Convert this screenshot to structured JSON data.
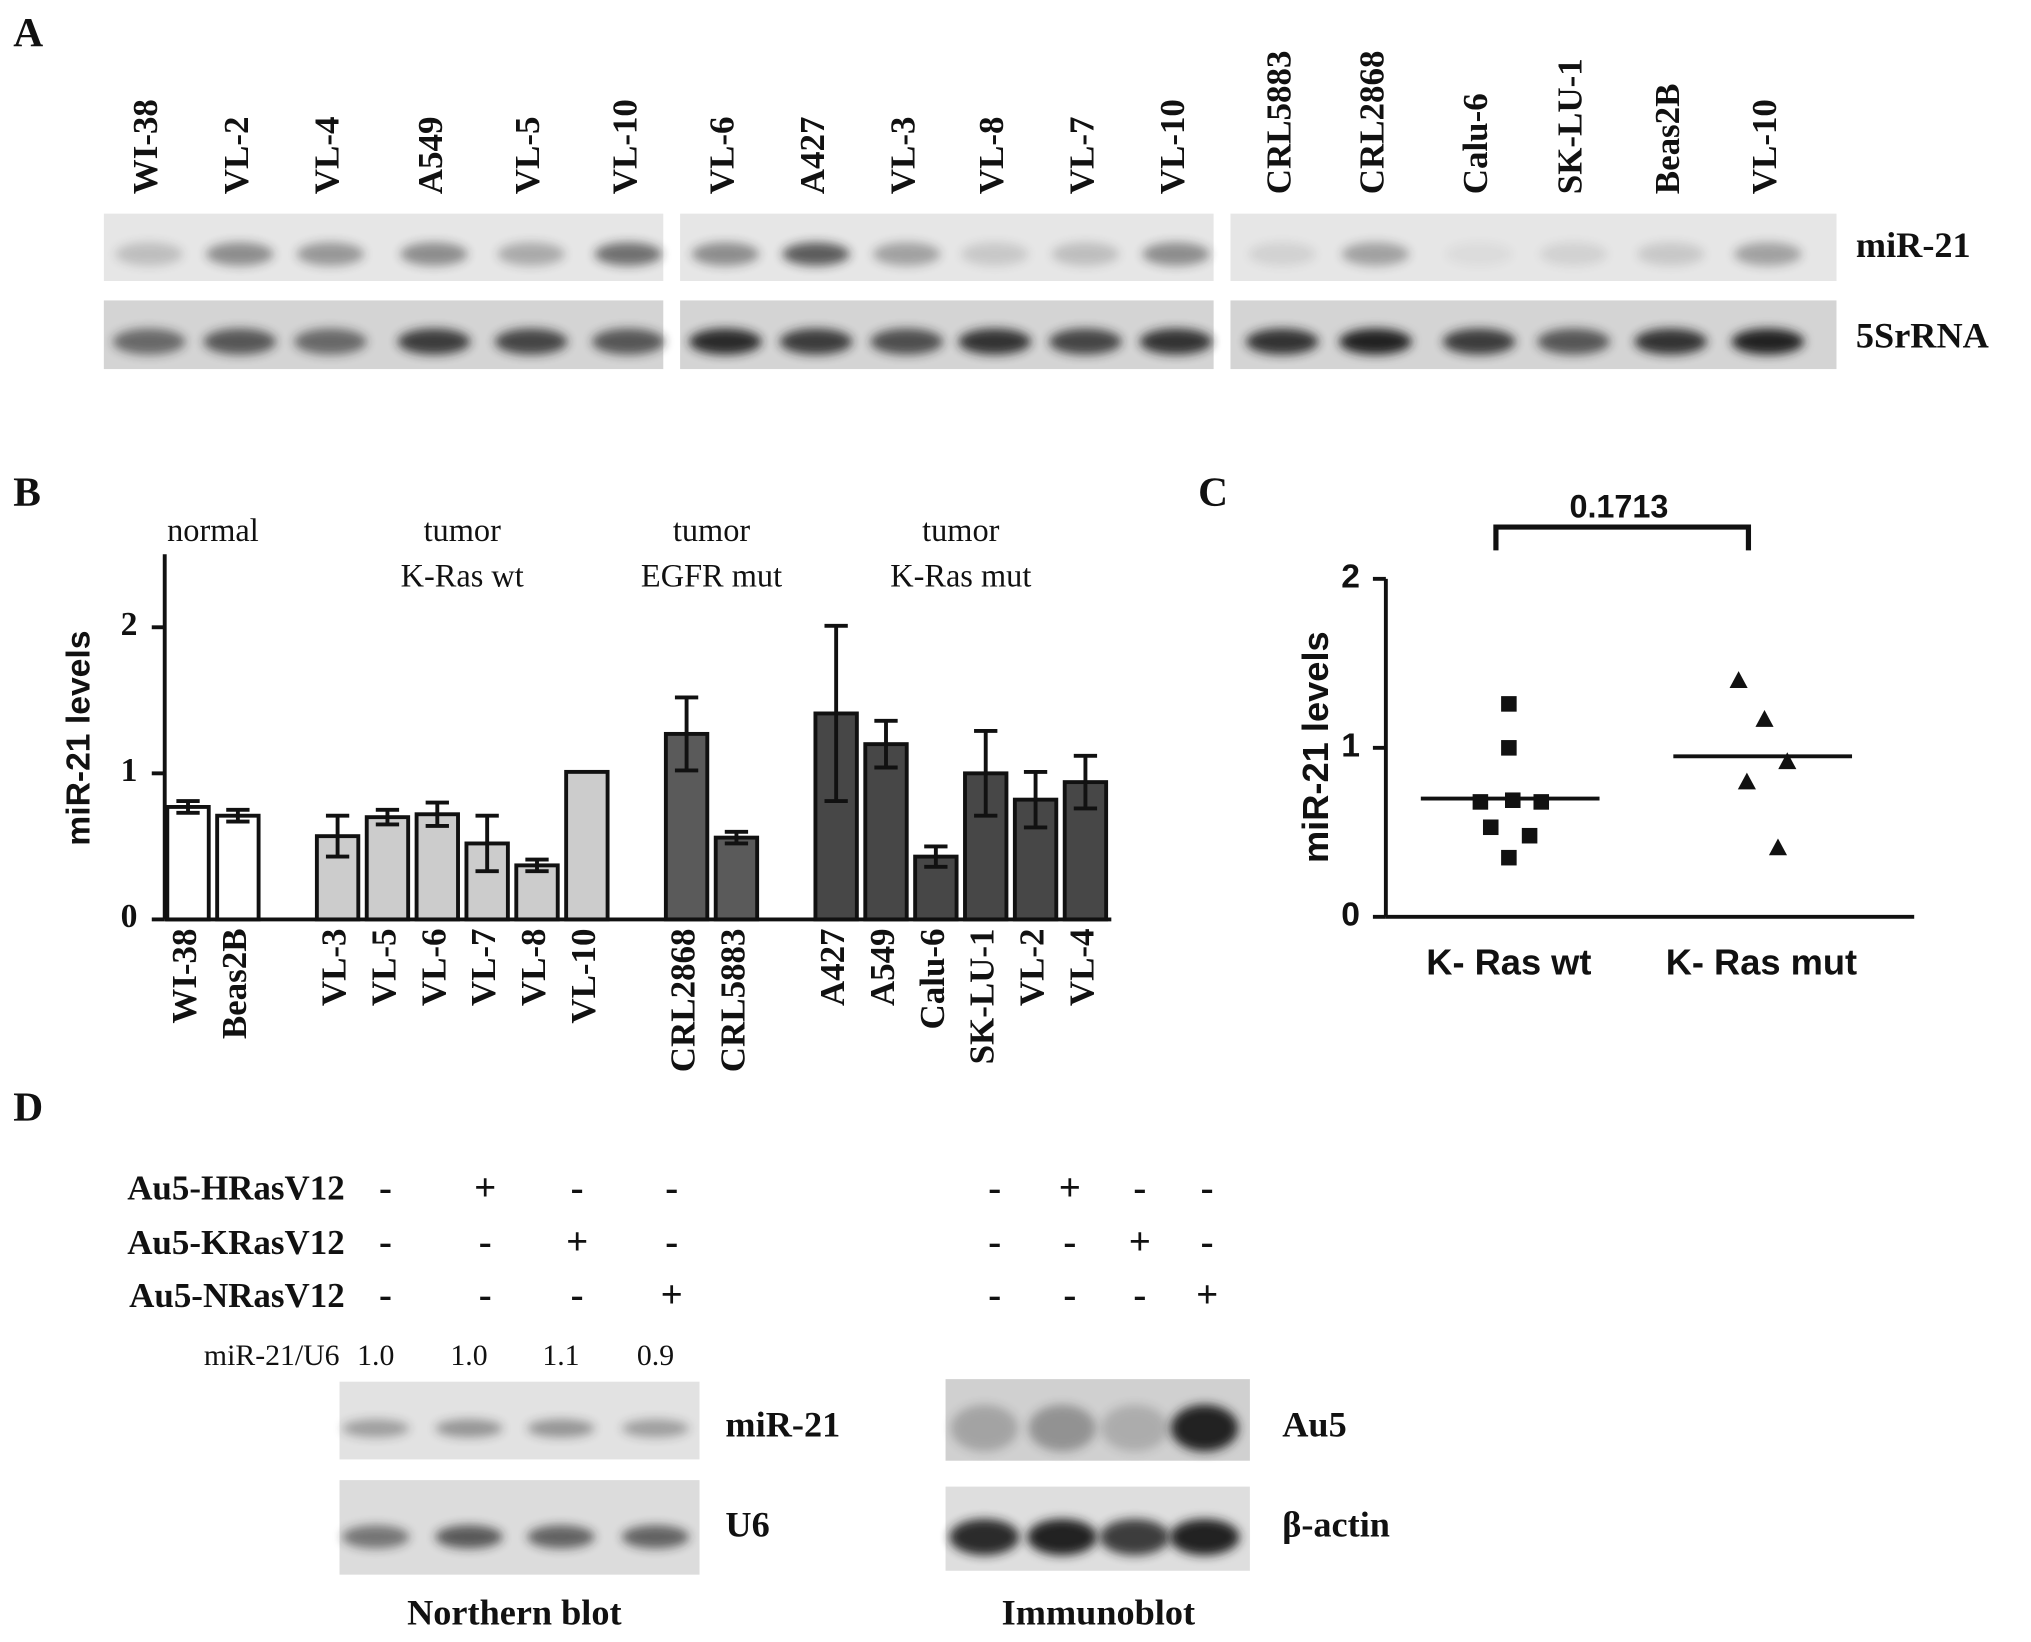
{
  "panel_a": {
    "label": "A",
    "blots": [
      [
        "WI-38",
        "VL-2",
        "VL-4",
        "A549",
        "VL-5",
        "VL-10"
      ],
      [
        "VL-6",
        "A427",
        "VL-3",
        "VL-8",
        "VL-7",
        "VL-10"
      ],
      [
        "CRL5883",
        "CRL2868",
        "Calu-6",
        "SK-LU-1",
        "Beas2B",
        "VL-10"
      ]
    ],
    "rows": [
      "miR-21",
      "5SrRNA"
    ]
  },
  "chart_data": [
    {
      "type": "bar",
      "label": "B",
      "ylabel": "miR-21 levels",
      "ylim": [
        0,
        2.5
      ],
      "yticks": [
        0,
        1,
        2
      ],
      "groups": [
        {
          "label": [
            "normal"
          ],
          "color": "#ffffff",
          "categories": [
            "WI-38",
            "Beas2B"
          ],
          "values": [
            0.77,
            0.71
          ],
          "errors": [
            0.04,
            0.04
          ]
        },
        {
          "label": [
            "tumor",
            "K-Ras wt"
          ],
          "color": "#cccccc",
          "categories": [
            "VL-3",
            "VL-5",
            "VL-6",
            "VL-7",
            "VL-8",
            "VL-10"
          ],
          "values": [
            0.57,
            0.7,
            0.72,
            0.52,
            0.37,
            1.01
          ],
          "errors": [
            0.14,
            0.05,
            0.08,
            0.19,
            0.04,
            0
          ]
        },
        {
          "label": [
            "tumor",
            "EGFR mut"
          ],
          "color": "#5a5a5a",
          "categories": [
            "CRL2868",
            "CRL5883"
          ],
          "values": [
            1.27,
            0.56
          ],
          "errors": [
            0.25,
            0.04
          ]
        },
        {
          "label": [
            "tumor",
            "K-Ras mut"
          ],
          "color": "#474747",
          "categories": [
            "A427",
            "A549",
            "Calu-6",
            "SK-LU-1",
            "VL-2",
            "VL-4"
          ],
          "values": [
            1.41,
            1.2,
            0.43,
            1.0,
            0.82,
            0.94
          ],
          "errors": [
            0.6,
            0.16,
            0.07,
            0.29,
            0.19,
            0.18
          ]
        }
      ]
    },
    {
      "type": "scatter",
      "label": "C",
      "ylabel": "miR-21 levels",
      "ylim": [
        0,
        2
      ],
      "yticks": [
        0,
        1,
        2
      ],
      "categories": [
        "K- Ras wt",
        "K- Ras mut"
      ],
      "series": [
        {
          "marker": "square",
          "values": [
            1.26,
            1.0,
            0.68,
            0.69,
            0.68,
            0.53,
            0.48,
            0.35
          ],
          "mean": 0.7
        },
        {
          "marker": "triangle",
          "values": [
            1.4,
            1.17,
            0.92,
            0.8,
            0.41
          ],
          "mean": 0.95
        }
      ],
      "annotation": "0.1713"
    }
  ],
  "panel_d": {
    "label": "D",
    "constructs": [
      {
        "name": "Au5-HRasV12",
        "northern": [
          "-",
          "+",
          "-",
          "-"
        ],
        "immuno": [
          "-",
          "+",
          "-",
          "-"
        ]
      },
      {
        "name": "Au5-KRasV12",
        "northern": [
          "-",
          "-",
          "+",
          "-"
        ],
        "immuno": [
          "-",
          "-",
          "+",
          "-"
        ]
      },
      {
        "name": "Au5-NRasV12",
        "northern": [
          "-",
          "-",
          "-",
          "+"
        ],
        "immuno": [
          "-",
          "-",
          "-",
          "+"
        ]
      }
    ],
    "ratio_label": "miR-21/U6",
    "ratios": [
      "1.0",
      "1.0",
      "1.1",
      "0.9"
    ],
    "northern_rows": [
      "miR-21",
      "U6"
    ],
    "northern_title": "Northern blot",
    "immuno_rows": [
      "Au5",
      "β-actin"
    ],
    "immuno_title": "Immunoblot"
  }
}
